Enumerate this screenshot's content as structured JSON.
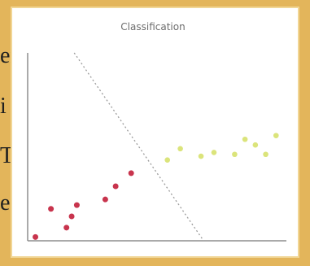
{
  "background_text": [
    {
      "text": "er"
    },
    {
      "text": "i"
    },
    {
      "text": "T"
    },
    {
      "text": "e"
    }
  ],
  "colors": {
    "page_background": "#e3b55b",
    "card_background": "#ffffff",
    "red_series": "#c8344d",
    "yellow_series": "#dbe47b",
    "axis": "#8d8d8d",
    "boundary": "#9c9c9c"
  },
  "chart_data": {
    "type": "scatter",
    "title": "Classification",
    "xlabel": "",
    "ylabel": "",
    "xlim": [
      0,
      10
    ],
    "ylim": [
      0,
      10
    ],
    "grid": false,
    "legend": "none",
    "series": [
      {
        "color": "#c8344d",
        "points": [
          {
            "x": 0.3,
            "y": 0.2
          },
          {
            "x": 0.9,
            "y": 1.7
          },
          {
            "x": 1.5,
            "y": 0.7
          },
          {
            "x": 1.7,
            "y": 1.3
          },
          {
            "x": 1.9,
            "y": 1.9
          },
          {
            "x": 3.0,
            "y": 2.2
          },
          {
            "x": 3.4,
            "y": 2.9
          },
          {
            "x": 4.0,
            "y": 3.6
          }
        ]
      },
      {
        "color": "#dbe47b",
        "points": [
          {
            "x": 5.4,
            "y": 4.3
          },
          {
            "x": 5.9,
            "y": 4.9
          },
          {
            "x": 6.7,
            "y": 4.5
          },
          {
            "x": 7.2,
            "y": 4.7
          },
          {
            "x": 8.0,
            "y": 4.6
          },
          {
            "x": 8.4,
            "y": 5.4
          },
          {
            "x": 8.8,
            "y": 5.1
          },
          {
            "x": 9.2,
            "y": 4.6
          },
          {
            "x": 9.6,
            "y": 5.6
          }
        ]
      }
    ],
    "decision_boundary": {
      "style": "dotted",
      "from": {
        "x": 1.8,
        "y": 10.0
      },
      "to": {
        "x": 6.8,
        "y": 0.0
      }
    }
  }
}
